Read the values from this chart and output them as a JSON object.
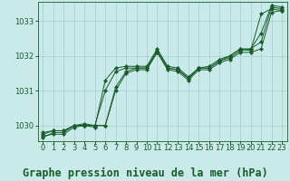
{
  "background_color": "#caeaea",
  "plot_bg_color": "#caeaea",
  "grid_color": "#9ecece",
  "line_color": "#1a5c2a",
  "title": "Graphe pression niveau de la mer (hPa)",
  "xlim": [
    -0.5,
    23.5
  ],
  "ylim": [
    1029.55,
    1033.55
  ],
  "yticks": [
    1030,
    1031,
    1032,
    1033
  ],
  "xticks": [
    0,
    1,
    2,
    3,
    4,
    5,
    6,
    7,
    8,
    9,
    10,
    11,
    12,
    13,
    14,
    15,
    16,
    17,
    18,
    19,
    20,
    21,
    22,
    23
  ],
  "series": [
    [
      1029.65,
      1029.8,
      1029.8,
      1030.0,
      1030.0,
      1030.0,
      1030.0,
      1031.1,
      1031.55,
      1031.65,
      1031.65,
      1032.15,
      1031.65,
      1031.6,
      1031.35,
      1031.65,
      1031.65,
      1031.85,
      1032.0,
      1032.2,
      1032.2,
      1032.4,
      1033.4,
      1033.35
    ],
    [
      1029.75,
      1029.85,
      1029.85,
      1030.0,
      1030.0,
      1030.0,
      1030.0,
      1031.0,
      1031.5,
      1031.6,
      1031.6,
      1032.1,
      1031.6,
      1031.55,
      1031.3,
      1031.6,
      1031.6,
      1031.8,
      1031.9,
      1032.1,
      1032.1,
      1032.2,
      1033.25,
      1033.3
    ],
    [
      1029.7,
      1029.75,
      1029.75,
      1029.95,
      1030.0,
      1029.95,
      1031.3,
      1031.65,
      1031.7,
      1031.7,
      1031.7,
      1032.2,
      1031.7,
      1031.65,
      1031.4,
      1031.65,
      1031.65,
      1031.85,
      1031.95,
      1032.15,
      1032.2,
      1032.65,
      1033.45,
      1033.4
    ],
    [
      1029.8,
      1029.85,
      1029.85,
      1030.0,
      1030.05,
      1030.0,
      1031.0,
      1031.55,
      1031.65,
      1031.65,
      1031.65,
      1032.1,
      1031.65,
      1031.6,
      1031.35,
      1031.65,
      1031.7,
      1031.9,
      1032.0,
      1032.2,
      1032.15,
      1033.2,
      1033.35,
      1033.3
    ]
  ],
  "title_fontsize": 8.5,
  "tick_fontsize": 6,
  "markersize": 2.2
}
